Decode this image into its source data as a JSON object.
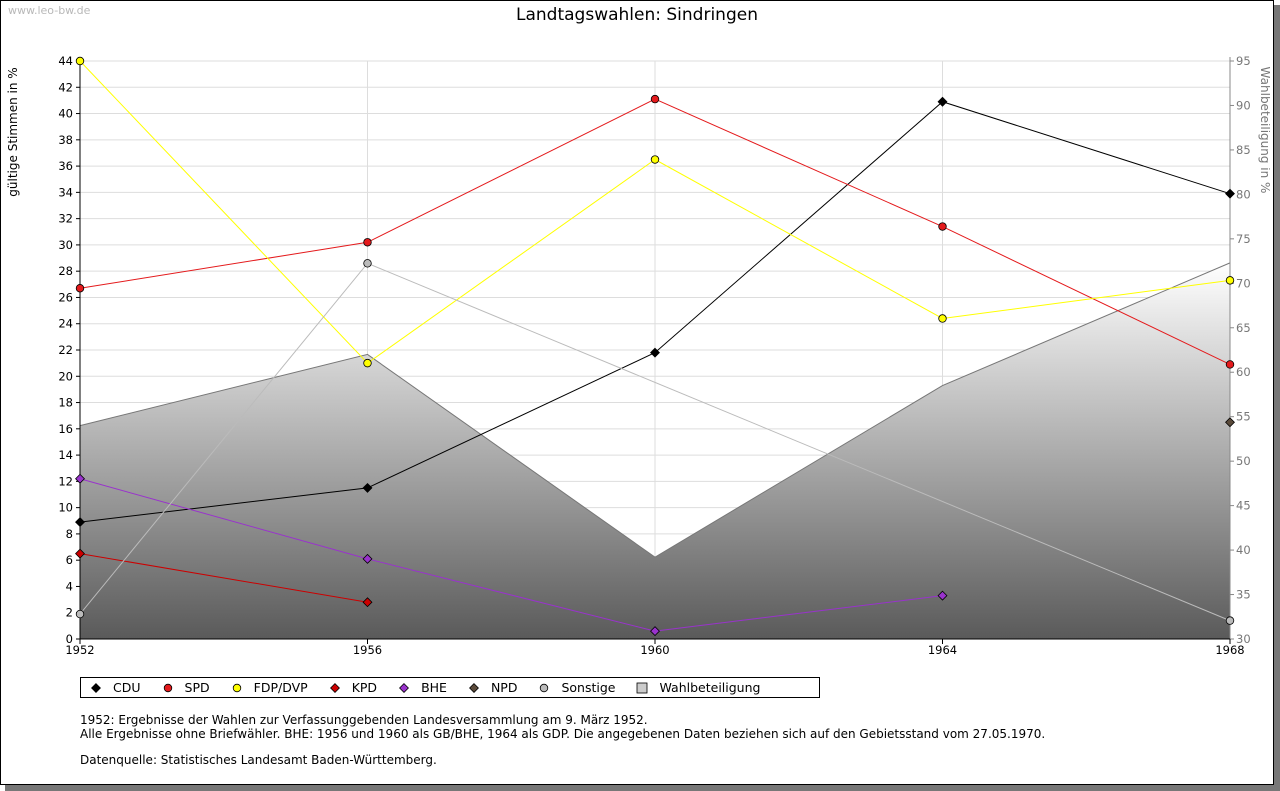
{
  "watermark": "www.leo-bw.de",
  "chart_data": {
    "type": "line",
    "title": "Landtagswahlen: Sindringen",
    "ylabel": "gültige Stimmen in %",
    "y2label": "Wahlbeteiligung in %",
    "x": [
      1952,
      1956,
      1960,
      1964,
      1968
    ],
    "ylim": [
      0,
      44
    ],
    "y2lim": [
      30,
      95
    ],
    "yticks": [
      0,
      2,
      4,
      6,
      8,
      10,
      12,
      14,
      16,
      18,
      20,
      22,
      24,
      26,
      28,
      30,
      32,
      34,
      36,
      38,
      40,
      42,
      44
    ],
    "y2ticks": [
      30,
      35,
      40,
      45,
      50,
      55,
      60,
      65,
      70,
      75,
      80,
      85,
      90,
      95
    ],
    "grid": true,
    "series": [
      {
        "name": "CDU",
        "color": "#000000",
        "marker": "diamond",
        "values": [
          8.9,
          11.5,
          21.8,
          40.9,
          33.9
        ]
      },
      {
        "name": "SPD",
        "color": "#e41a1c",
        "marker": "circle",
        "values": [
          26.7,
          30.2,
          41.1,
          31.4,
          20.9
        ]
      },
      {
        "name": "FDP/DVP",
        "color": "#ffff00",
        "marker": "circle",
        "values": [
          44.0,
          21.0,
          36.5,
          24.4,
          27.3
        ]
      },
      {
        "name": "KPD",
        "color": "#cc0000",
        "marker": "diamond",
        "values": [
          6.5,
          2.8,
          null,
          null,
          null
        ]
      },
      {
        "name": "BHE",
        "color": "#9933cc",
        "marker": "diamond",
        "values": [
          12.2,
          6.1,
          0.6,
          3.3,
          null
        ]
      },
      {
        "name": "NPD",
        "color": "#5a4a3a",
        "marker": "diamond",
        "values": [
          null,
          null,
          null,
          null,
          16.5
        ]
      },
      {
        "name": "Sonstige",
        "color": "#bbbbbb",
        "marker": "circle",
        "values": [
          1.9,
          28.6,
          null,
          null,
          1.4
        ]
      },
      {
        "name": "Wahlbeteiligung",
        "axis": "right",
        "type": "area",
        "color": "#888888",
        "values": [
          54.0,
          62.0,
          39.2,
          58.5,
          72.3
        ]
      }
    ]
  },
  "legend": [
    {
      "label": "CDU",
      "color": "#000000",
      "shape": "diamond"
    },
    {
      "label": "SPD",
      "color": "#e41a1c",
      "shape": "circle"
    },
    {
      "label": "FDP/DVP",
      "color": "#ffff00",
      "shape": "circle"
    },
    {
      "label": "KPD",
      "color": "#cc0000",
      "shape": "diamond"
    },
    {
      "label": "BHE",
      "color": "#9933cc",
      "shape": "diamond"
    },
    {
      "label": "NPD",
      "color": "#5a4a3a",
      "shape": "diamond"
    },
    {
      "label": "Sonstige",
      "color": "#bbbbbb",
      "shape": "circle"
    },
    {
      "label": "Wahlbeteiligung",
      "color": "#cccccc",
      "shape": "square"
    }
  ],
  "notes": {
    "line1": "1952: Ergebnisse der Wahlen zur Verfassunggebenden Landesversammlung am 9. März 1952.",
    "line2": "Alle Ergebnisse ohne Briefwähler. BHE: 1956 und 1960 als GB/BHE, 1964 als GDP. Die angegebenen Daten beziehen sich auf den Gebietsstand vom 27.05.1970.",
    "source": "Datenquelle: Statistisches Landesamt Baden-Württemberg."
  }
}
